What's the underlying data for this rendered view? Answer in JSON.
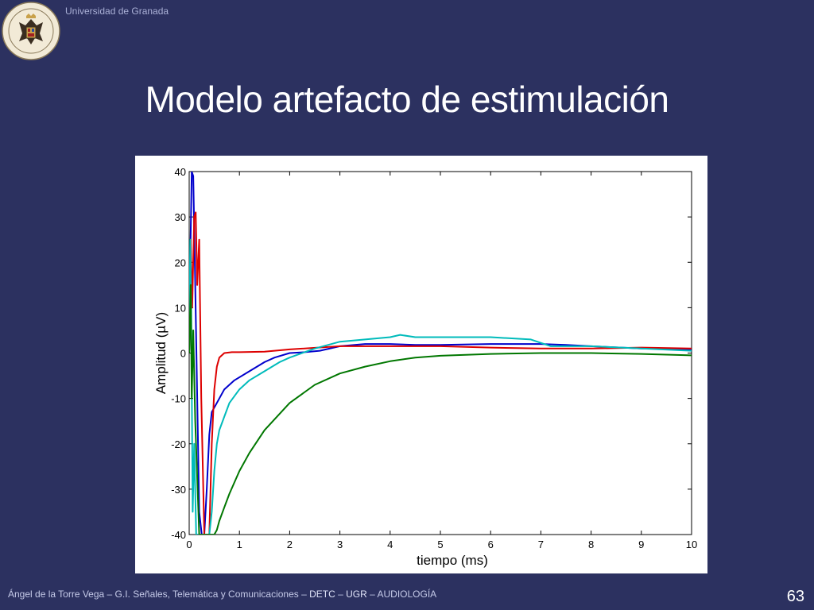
{
  "header": {
    "university": "Universidad de Granada",
    "title": "Modelo artefacto de estimulación"
  },
  "footer": {
    "author": "Ángel de la Torre Vega",
    "sep1": " – ",
    "group": "G.I. Señales, Telemática y Comunicaciones",
    "sep2": " – ",
    "dept": "DETC",
    "sep3": " – ",
    "univ": "UGR",
    "sep4": " – ",
    "topic": "AUDIOLOGÍA",
    "page": "63"
  },
  "colors": {
    "background": "#2c3160",
    "blue": "#0000cc",
    "red": "#dd0000",
    "cyan": "#00bbbb",
    "green": "#007700"
  },
  "chart_data": {
    "type": "line",
    "title": "",
    "xlabel": "tiempo (ms)",
    "ylabel": "Amplitud (µV)",
    "xlim": [
      0,
      10
    ],
    "ylim": [
      -40,
      40
    ],
    "xticks": [
      "0",
      "1",
      "2",
      "3",
      "4",
      "5",
      "6",
      "7",
      "8",
      "9",
      "10"
    ],
    "yticks": [
      "40",
      "30",
      "20",
      "10",
      "0",
      "-10",
      "-20",
      "-30",
      "-40"
    ],
    "grid": false,
    "series": [
      {
        "color": "#0000cc",
        "x": [
          0,
          0.02,
          0.05,
          0.08,
          0.12,
          0.16,
          0.2,
          0.25,
          0.3,
          0.35,
          0.4,
          0.45,
          0.55,
          0.7,
          0.9,
          1.2,
          1.5,
          1.7,
          2.0,
          2.3,
          2.6,
          3.0,
          3.5,
          4.0,
          4.5,
          5.0,
          6.0,
          7.0,
          7.5,
          8.0,
          9.0,
          10.0
        ],
        "y": [
          0,
          20,
          40,
          39,
          15,
          -10,
          -35,
          -40,
          -40,
          -30,
          -18,
          -13,
          -11,
          -8,
          -6,
          -4,
          -2,
          -1,
          0,
          0.2,
          0.5,
          1.5,
          2,
          2,
          1.8,
          1.8,
          2,
          2,
          1.8,
          1.5,
          1,
          0.8
        ]
      },
      {
        "color": "#dd0000",
        "x": [
          0,
          0.03,
          0.06,
          0.1,
          0.13,
          0.16,
          0.2,
          0.24,
          0.3,
          0.35,
          0.4,
          0.45,
          0.5,
          0.55,
          0.6,
          0.7,
          0.85,
          1.0,
          1.5,
          2.0,
          3.0,
          4.0,
          5.0,
          6.0,
          7.0,
          8.0,
          9.0,
          10.0
        ],
        "y": [
          0,
          25,
          10,
          30,
          31,
          15,
          25,
          -10,
          -40,
          -40,
          -40,
          -20,
          -8,
          -3,
          -1,
          0,
          0.2,
          0.2,
          0.3,
          0.8,
          1.5,
          1.5,
          1.5,
          1.2,
          1,
          1,
          1.2,
          1
        ]
      },
      {
        "color": "#00bbbb",
        "x": [
          0,
          0.02,
          0.04,
          0.07,
          0.1,
          0.14,
          0.2,
          0.3,
          0.4,
          0.45,
          0.5,
          0.55,
          0.6,
          0.7,
          0.8,
          1.0,
          1.2,
          1.5,
          1.8,
          2.0,
          2.5,
          3.0,
          3.5,
          4.0,
          4.2,
          4.5,
          5.0,
          6.0,
          6.8,
          7.2,
          8.0,
          9.0,
          10.0
        ],
        "y": [
          0,
          25,
          10,
          -35,
          -20,
          -40,
          -40,
          -40,
          -40,
          -35,
          -26,
          -20,
          -17,
          -14,
          -11,
          -8,
          -6,
          -4,
          -2,
          -1,
          1,
          2.5,
          3,
          3.5,
          4,
          3.5,
          3.5,
          3.5,
          3,
          1.5,
          1.5,
          1,
          0.5
        ]
      },
      {
        "color": "#007700",
        "x": [
          0,
          0.03,
          0.05,
          0.08,
          0.12,
          0.2,
          0.3,
          0.4,
          0.5,
          0.55,
          0.6,
          0.7,
          0.8,
          1.0,
          1.2,
          1.5,
          2.0,
          2.5,
          3.0,
          3.5,
          4.0,
          4.5,
          5.0,
          6.0,
          7.0,
          8.0,
          9.0,
          10.0
        ],
        "y": [
          0,
          15,
          -10,
          5,
          -15,
          -40,
          -40,
          -40,
          -40,
          -39,
          -37,
          -34,
          -31,
          -26,
          -22,
          -17,
          -11,
          -7,
          -4.5,
          -3,
          -1.8,
          -1,
          -0.6,
          -0.2,
          0,
          0,
          -0.2,
          -0.5
        ]
      }
    ]
  }
}
